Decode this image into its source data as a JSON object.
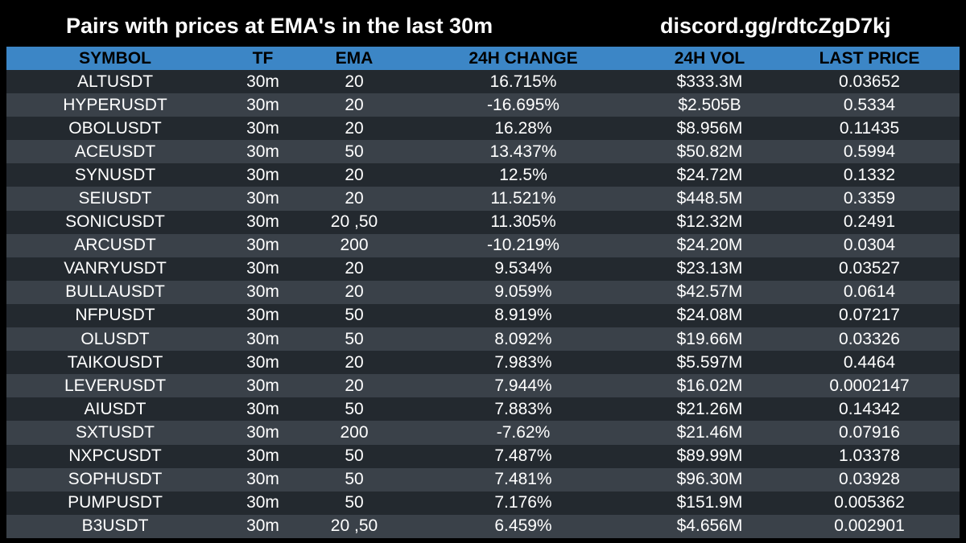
{
  "header": {
    "title": "Pairs with prices at EMA's in the last 30m",
    "link": "discord.gg/rdtcZgD7kj"
  },
  "colors": {
    "background": "#000000",
    "header_row": "#3c86c6",
    "row_dark": "#23292f",
    "row_light": "#3a4149",
    "text": "#ffffff"
  },
  "table": {
    "columns": [
      "SYMBOL",
      "TF",
      "EMA",
      "24H CHANGE",
      "24H VOL",
      "LAST PRICE"
    ],
    "rows": [
      [
        "ALTUSDT",
        "30m",
        "20",
        "16.715%",
        "$333.3M",
        "0.03652"
      ],
      [
        "HYPERUSDT",
        "30m",
        "20",
        "-16.695%",
        "$2.505B",
        "0.5334"
      ],
      [
        "OBOLUSDT",
        "30m",
        "20",
        "16.28%",
        "$8.956M",
        "0.11435"
      ],
      [
        "ACEUSDT",
        "30m",
        "50",
        "13.437%",
        "$50.82M",
        "0.5994"
      ],
      [
        "SYNUSDT",
        "30m",
        "20",
        "12.5%",
        "$24.72M",
        "0.1332"
      ],
      [
        "SEIUSDT",
        "30m",
        "20",
        "11.521%",
        "$448.5M",
        "0.3359"
      ],
      [
        "SONICUSDT",
        "30m",
        "20 ,50",
        "11.305%",
        "$12.32M",
        "0.2491"
      ],
      [
        "ARCUSDT",
        "30m",
        "200",
        "-10.219%",
        "$24.20M",
        "0.0304"
      ],
      [
        "VANRYUSDT",
        "30m",
        "20",
        "9.534%",
        "$23.13M",
        "0.03527"
      ],
      [
        "BULLAUSDT",
        "30m",
        "20",
        "9.059%",
        "$42.57M",
        "0.0614"
      ],
      [
        "NFPUSDT",
        "30m",
        "50",
        "8.919%",
        "$24.08M",
        "0.07217"
      ],
      [
        "OLUSDT",
        "30m",
        "50",
        "8.092%",
        "$19.66M",
        "0.03326"
      ],
      [
        "TAIKOUSDT",
        "30m",
        "20",
        "7.983%",
        "$5.597M",
        "0.4464"
      ],
      [
        "LEVERUSDT",
        "30m",
        "20",
        "7.944%",
        "$16.02M",
        "0.0002147"
      ],
      [
        "AIUSDT",
        "30m",
        "50",
        "7.883%",
        "$21.26M",
        "0.14342"
      ],
      [
        "SXTUSDT",
        "30m",
        "200",
        "-7.62%",
        "$21.46M",
        "0.07916"
      ],
      [
        "NXPCUSDT",
        "30m",
        "50",
        "7.487%",
        "$89.99M",
        "1.03378"
      ],
      [
        "SOPHUSDT",
        "30m",
        "50",
        "7.481%",
        "$96.30M",
        "0.03928"
      ],
      [
        "PUMPUSDT",
        "30m",
        "50",
        "7.176%",
        "$151.9M",
        "0.005362"
      ],
      [
        "B3USDT",
        "30m",
        "20 ,50",
        "6.459%",
        "$4.656M",
        "0.002901"
      ]
    ]
  }
}
